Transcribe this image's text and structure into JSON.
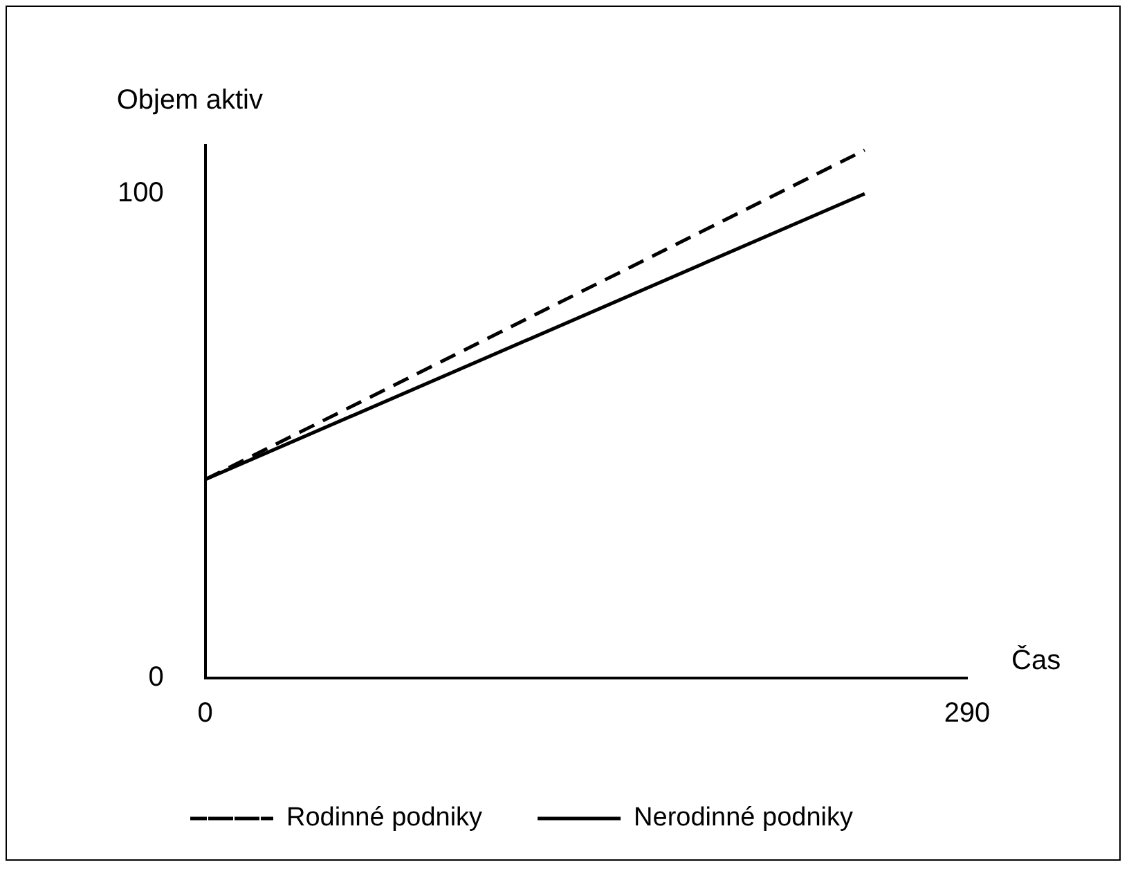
{
  "chart_data": {
    "type": "line",
    "xlabel": "Čas",
    "ylabel": "Objem aktiv",
    "xlim": [
      0,
      290
    ],
    "xticks": [
      0,
      290
    ],
    "ylim": [
      0,
      110
    ],
    "yticks": [
      0,
      100
    ],
    "grid": false,
    "legend": "bottom",
    "marker": "none",
    "x": [
      0,
      251
    ],
    "series": [
      {
        "name": "Rodinné podniky",
        "color": "#000000",
        "line_style": "dashed",
        "values": [
          41,
          109
        ]
      },
      {
        "name": "Nerodinné podniky",
        "color": "#000000",
        "line_style": "solid",
        "values": [
          41,
          100
        ]
      }
    ]
  }
}
